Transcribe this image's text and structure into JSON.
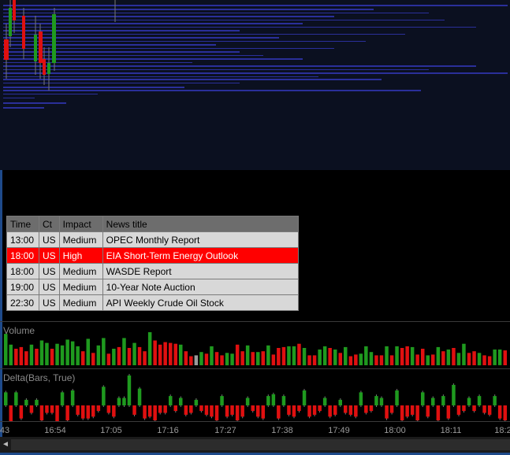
{
  "news": {
    "headers": [
      "Time",
      "Ct",
      "Impact",
      "News title"
    ],
    "rows": [
      {
        "time": "13:00",
        "ct": "US",
        "impact": "Medium",
        "title": "OPEC Monthly Report"
      },
      {
        "time": "18:00",
        "ct": "US",
        "impact": "High",
        "title": "EIA Short-Term Energy Outlook"
      },
      {
        "time": "18:00",
        "ct": "US",
        "impact": "Medium",
        "title": "WASDE Report"
      },
      {
        "time": "19:00",
        "ct": "US",
        "impact": "Medium",
        "title": "10-Year Note Auction"
      },
      {
        "time": "22:30",
        "ct": "US",
        "impact": "Medium",
        "title": "API Weekly Crude Oil Stock"
      }
    ]
  },
  "volume_panel": {
    "label": "Volume"
  },
  "delta_panel": {
    "label": "Delta(Bars, True)"
  },
  "time_axis": {
    "labels": [
      "43",
      "16:54",
      "17:05",
      "17:16",
      "17:27",
      "17:38",
      "17:49",
      "18:00",
      "18:11",
      "18:2"
    ]
  },
  "scrollbar": {
    "left_arrow": "◄"
  },
  "colors": {
    "up": "#1f9a1f",
    "down": "#e01010",
    "neutral": "#9a9a9a",
    "profile": "#2a2f9a",
    "high_impact": "#ff0000"
  },
  "chart_data": [
    {
      "type": "bar",
      "title": "Volume",
      "values": [
        38,
        25,
        20,
        22,
        17,
        25,
        20,
        30,
        27,
        20,
        26,
        24,
        31,
        29,
        23,
        17,
        32,
        15,
        24,
        33,
        14,
        20,
        22,
        33,
        21,
        27,
        22,
        17,
        40,
        30,
        25,
        28,
        27,
        26,
        25,
        17,
        11,
        12,
        16,
        14,
        23,
        16,
        12,
        15,
        14,
        25,
        17,
        24,
        16,
        16,
        17,
        24,
        13,
        21,
        22,
        23,
        23,
        26,
        21,
        12,
        12,
        19,
        23,
        21,
        19,
        15,
        22,
        11,
        13,
        14,
        23,
        16,
        12,
        12,
        23,
        12,
        23,
        21,
        23,
        22,
        13,
        20,
        12,
        13,
        22,
        17,
        19,
        21,
        15,
        26,
        15,
        17,
        15,
        12,
        11,
        19,
        19,
        18
      ],
      "directions": [
        "u",
        "u",
        "d",
        "d",
        "d",
        "u",
        "d",
        "u",
        "u",
        "d",
        "u",
        "u",
        "u",
        "u",
        "u",
        "d",
        "u",
        "d",
        "u",
        "u",
        "d",
        "u",
        "d",
        "u",
        "d",
        "u",
        "d",
        "d",
        "u",
        "d",
        "d",
        "d",
        "d",
        "d",
        "u",
        "d",
        "d",
        "n",
        "u",
        "d",
        "u",
        "d",
        "d",
        "u",
        "u",
        "d",
        "d",
        "u",
        "d",
        "u",
        "d",
        "u",
        "d",
        "d",
        "d",
        "u",
        "u",
        "d",
        "u",
        "d",
        "d",
        "u",
        "u",
        "d",
        "u",
        "d",
        "u",
        "d",
        "d",
        "u",
        "u",
        "u",
        "d",
        "d",
        "u",
        "d",
        "u",
        "d",
        "d",
        "u",
        "d",
        "d",
        "u",
        "d",
        "u",
        "d",
        "u",
        "d",
        "u",
        "u",
        "d",
        "d",
        "u",
        "d",
        "d",
        "u",
        "u",
        "d"
      ]
    },
    {
      "type": "bar",
      "title": "Delta(Bars, True)",
      "values": [
        7,
        -9,
        7,
        -7,
        3,
        -4,
        3,
        -8,
        -4,
        -4,
        -9,
        7,
        -8,
        8,
        -5,
        -7,
        -7,
        -6,
        -3,
        10,
        -4,
        -6,
        4,
        4,
        16,
        -5,
        9,
        -7,
        -6,
        -8,
        -4,
        -4,
        5,
        -3,
        4,
        -5,
        -4,
        3,
        -3,
        -5,
        -6,
        -8,
        5,
        -6,
        -5,
        -8,
        -6,
        4,
        -3,
        -6,
        -7,
        5,
        6,
        -7,
        5,
        -5,
        -6,
        -3,
        8,
        -6,
        -5,
        -3,
        4,
        -6,
        -5,
        3,
        -4,
        -5,
        -6,
        7,
        -4,
        -3,
        5,
        4,
        -7,
        -4,
        8,
        -8,
        -6,
        -5,
        -8,
        7,
        -6,
        4,
        -8,
        5,
        -7,
        11,
        -5,
        -3,
        4,
        -3,
        5,
        -4,
        -5,
        5,
        -7,
        -8
      ]
    }
  ]
}
